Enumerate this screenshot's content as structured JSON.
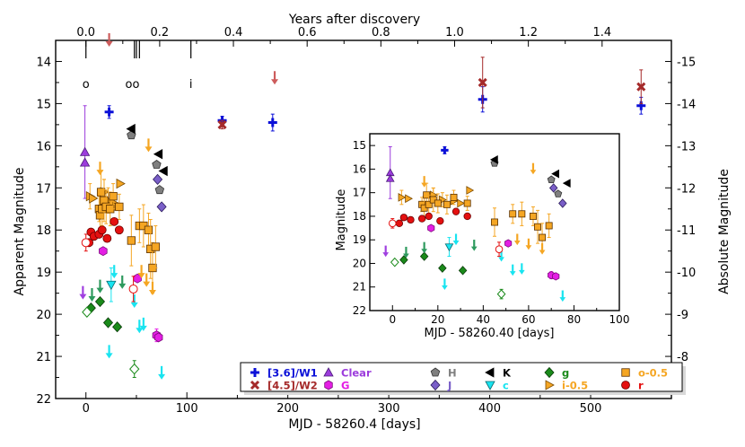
{
  "chart_data": {
    "type": "scatter",
    "main": {
      "xlabel": "MJD - 58260.4 [days]",
      "ylabel": "Apparent Magnitude",
      "top_xlabel": "Years after discovery",
      "right_ylabel": "Absolute Magnitude",
      "xlim": [
        -30,
        580
      ],
      "ylim": [
        22,
        13.5
      ],
      "x_ticks": [
        "0",
        "100",
        "200",
        "300",
        "400",
        "500"
      ],
      "y_ticks": [
        "14",
        "15",
        "16",
        "17",
        "18",
        "19",
        "20",
        "21",
        "22"
      ],
      "top_ticks": [
        "0.0",
        "0.2",
        "0.4",
        "0.6",
        "0.8",
        "1.0",
        "1.2",
        "1.4"
      ],
      "right_ticks": [
        "-15",
        "-14",
        "-13",
        "-12",
        "-11",
        "-10",
        "-9",
        "-8"
      ],
      "epoch_labels": [
        {
          "x": 0,
          "text": "o"
        },
        {
          "x": 46,
          "text": "oo"
        },
        {
          "x": 104,
          "text": "i"
        }
      ]
    },
    "inset": {
      "xlabel": "MJD - 58260.40 [days]",
      "ylabel": "Magnitude",
      "xlim": [
        -10,
        100
      ],
      "ylim": [
        22,
        14.5
      ],
      "x_ticks": [
        "0",
        "20",
        "40",
        "60",
        "80",
        "100"
      ],
      "y_ticks": [
        "15",
        "16",
        "17",
        "18",
        "19",
        "20",
        "21",
        "22"
      ]
    },
    "legend": [
      {
        "label": "[3.6]/W1",
        "color": "#0b10d8"
      },
      {
        "label": "[4.5]/W2",
        "color": "#a52a2a"
      },
      {
        "label": "Clear",
        "color": "#9c3cdc"
      },
      {
        "label": "G",
        "color": "#e41ee4"
      },
      {
        "label": "H",
        "color": "#7f7f7f"
      },
      {
        "label": "J",
        "color": "#7a5fc8"
      },
      {
        "label": "K",
        "color": "#000000"
      },
      {
        "label": "c",
        "color": "#19e4f0"
      },
      {
        "label": "g",
        "color": "#1a8a1a"
      },
      {
        "label": "i-0.5",
        "color": "#f5a623"
      },
      {
        "label": "o-0.5",
        "color": "#f5a623"
      },
      {
        "label": "r",
        "color": "#e41010"
      }
    ],
    "series": [
      {
        "name": "[3.6]/W1",
        "marker": "plus",
        "color": "#0b10d8",
        "edge": "#0b10d8",
        "points": [
          [
            23,
            15.2,
            0.15
          ],
          [
            135,
            15.4,
            0.1
          ],
          [
            185,
            15.45,
            0.2
          ],
          [
            393,
            14.9,
            0.3
          ],
          [
            550,
            15.05,
            0.2
          ]
        ]
      },
      {
        "name": "[4.5]/W2",
        "marker": "x",
        "color": "#a52a2a",
        "edge": "#a52a2a",
        "points": [
          [
            135,
            15.5,
            0.1
          ],
          [
            393,
            14.5,
            0.6
          ],
          [
            550,
            14.6,
            0.4
          ]
        ]
      },
      {
        "name": "[4.5]/W2 upper limit",
        "marker": "arrow",
        "color": "#cd5c5c",
        "points": [
          [
            23,
            13.5
          ],
          [
            187,
            14.4
          ]
        ]
      },
      {
        "name": "Clear",
        "marker": "triangle",
        "color": "#9c3cdc",
        "edge": "#4b1c7a",
        "points": [
          [
            -1,
            16.15,
            1.1
          ],
          [
            -1,
            16.4,
            0
          ]
        ]
      },
      {
        "name": "Clear upper limit",
        "marker": "arrow",
        "color": "#a040e0",
        "points": [
          [
            -3,
            19.5
          ]
        ]
      },
      {
        "name": "G",
        "marker": "hexagon",
        "color": "#e41ee4",
        "edge": "#7a0a7a",
        "points": [
          [
            17,
            18.5,
            0
          ],
          [
            51,
            19.15,
            0
          ],
          [
            70,
            20.5,
            0.15
          ],
          [
            72,
            20.55,
            0
          ]
        ]
      },
      {
        "name": "H",
        "marker": "pentagon",
        "color": "#7f7f7f",
        "edge": "#333333",
        "points": [
          [
            45,
            15.75,
            0
          ],
          [
            70,
            16.45,
            0
          ],
          [
            73,
            17.05,
            0
          ]
        ]
      },
      {
        "name": "J",
        "marker": "diamond",
        "color": "#7a5fc8",
        "edge": "#2a1a5a",
        "points": [
          [
            71,
            16.8,
            0
          ],
          [
            75,
            17.45,
            0
          ]
        ]
      },
      {
        "name": "K",
        "marker": "tri_left",
        "color": "#000000",
        "edge": "#000000",
        "points": [
          [
            45,
            15.6,
            0
          ],
          [
            72,
            16.2,
            0
          ],
          [
            77,
            16.6,
            0
          ]
        ]
      },
      {
        "name": "c",
        "marker": "tri_down",
        "color": "#19e4f0",
        "edge": "#0a6a70",
        "points": [
          [
            25,
            19.3,
            0.4
          ]
        ]
      },
      {
        "name": "c upper limit",
        "marker": "arrow",
        "color": "#19e4f0",
        "points": [
          [
            23,
            20.9
          ],
          [
            28,
            19.0
          ],
          [
            48,
            19.7
          ],
          [
            53,
            20.3
          ],
          [
            57,
            20.25
          ],
          [
            75,
            21.4
          ]
        ]
      },
      {
        "name": "g",
        "marker": "diamond",
        "color": "#1a8a1a",
        "edge": "#0a3a0a",
        "points": [
          [
            5,
            19.85,
            0
          ],
          [
            14,
            19.7,
            0
          ],
          [
            22,
            20.2,
            0
          ],
          [
            31,
            20.3,
            0
          ]
        ]
      },
      {
        "name": "g open",
        "marker": "diamond_open",
        "color": "#1a8a1a",
        "edge": "#1a8a1a",
        "points": [
          [
            1,
            19.95,
            0
          ],
          [
            48,
            21.3,
            0.2
          ]
        ]
      },
      {
        "name": "g upper limit",
        "marker": "arrow",
        "color": "#2e9a5e",
        "points": [
          [
            6,
            19.55
          ],
          [
            14,
            19.35
          ],
          [
            36,
            19.25
          ]
        ]
      },
      {
        "name": "i-0.5",
        "marker": "tri_right",
        "color": "#f5a623",
        "edge": "#7a4a00",
        "points": [
          [
            4,
            17.2,
            0.3
          ],
          [
            7,
            17.25,
            0
          ],
          [
            18,
            17.1,
            0.3
          ],
          [
            22,
            17.3,
            0.3
          ],
          [
            27,
            17.35,
            0
          ],
          [
            30,
            17.45,
            0
          ],
          [
            34,
            16.9,
            0
          ]
        ]
      },
      {
        "name": "o-0.5",
        "marker": "square",
        "color": "#f5a623",
        "edge": "#5a3000",
        "points": [
          [
            13,
            17.5,
            0.3
          ],
          [
            14,
            17.65,
            0.5
          ],
          [
            15,
            17.1,
            0.5
          ],
          [
            16,
            17.5,
            0.4
          ],
          [
            18,
            17.3,
            0.5
          ],
          [
            20,
            17.45,
            0.4
          ],
          [
            24,
            17.5,
            0.4
          ],
          [
            27,
            17.2,
            0.3
          ],
          [
            33,
            17.45,
            0.3
          ],
          [
            45,
            18.25,
            0.6
          ],
          [
            53,
            17.9,
            0.4
          ],
          [
            57,
            17.9,
            0.5
          ],
          [
            62,
            18.0,
            0.4
          ],
          [
            64,
            18.45,
            0.7
          ],
          [
            66,
            18.9,
            0.6
          ],
          [
            69,
            18.4,
            0.5
          ]
        ]
      },
      {
        "name": "o-0.5 upper limit",
        "marker": "arrow",
        "color": "#f5a623",
        "points": [
          [
            14,
            16.55
          ],
          [
            62,
            16.0
          ],
          [
            55,
            19.0
          ],
          [
            60,
            19.2
          ],
          [
            66,
            19.4
          ]
        ]
      },
      {
        "name": "r",
        "marker": "circle",
        "color": "#e41010",
        "edge": "#6a0000",
        "points": [
          [
            3,
            18.3,
            0
          ],
          [
            5,
            18.05,
            0
          ],
          [
            8,
            18.15,
            0
          ],
          [
            13,
            18.1,
            0
          ],
          [
            16,
            18.0,
            0
          ],
          [
            21,
            18.2,
            0
          ],
          [
            28,
            17.8,
            0
          ],
          [
            33,
            18.0,
            0
          ]
        ]
      },
      {
        "name": "r open",
        "marker": "circle_open",
        "color": "#e41010",
        "edge": "#e41010",
        "points": [
          [
            0,
            18.3,
            0.2
          ],
          [
            47,
            19.4,
            0.3
          ]
        ]
      }
    ]
  }
}
